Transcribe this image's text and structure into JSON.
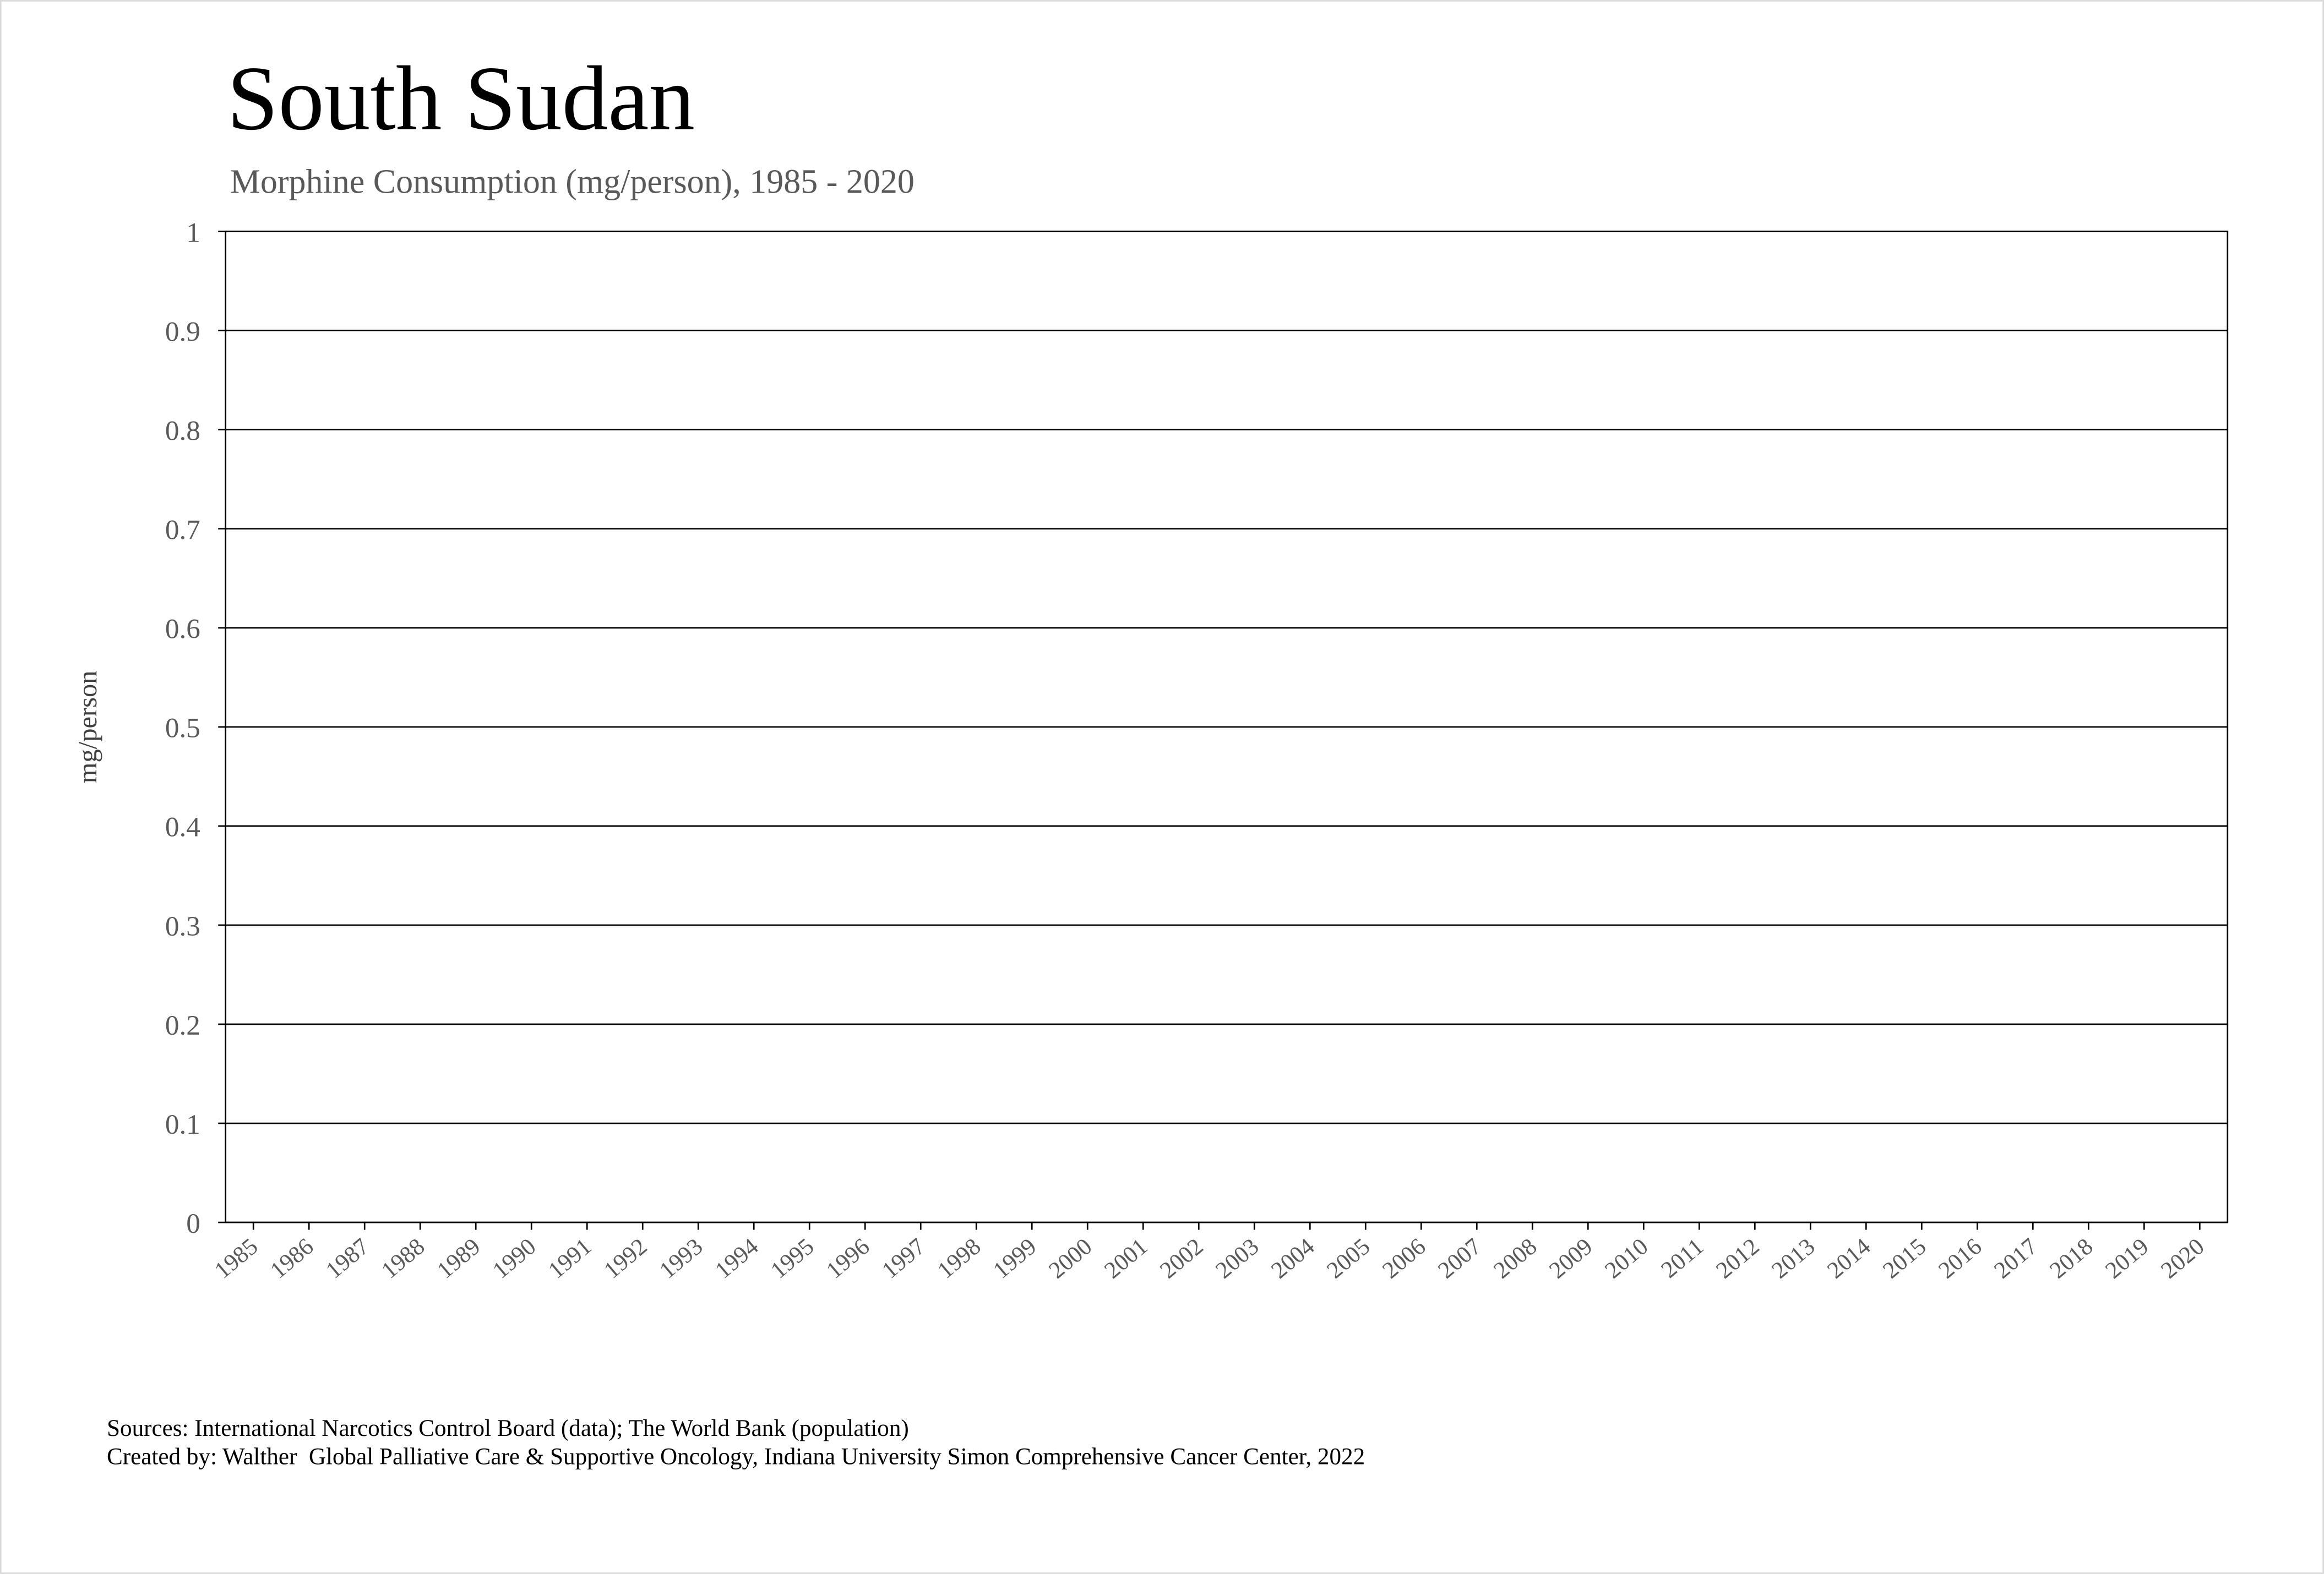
{
  "chart_data": {
    "type": "line",
    "title": "South Sudan",
    "subtitle": "Morphine Consumption (mg/person), 1985 - 2020",
    "y_label": "mg/person",
    "categories": [
      "1985",
      "1986",
      "1987",
      "1988",
      "1989",
      "1990",
      "1991",
      "1992",
      "1993",
      "1994",
      "1995",
      "1996",
      "1997",
      "1998",
      "1999",
      "2000",
      "2001",
      "2002",
      "2003",
      "2004",
      "2005",
      "2006",
      "2007",
      "2008",
      "2009",
      "2010",
      "2011",
      "2012",
      "2013",
      "2014",
      "2015",
      "2016",
      "2017",
      "2018",
      "2019",
      "2020"
    ],
    "values": [
      null,
      null,
      null,
      null,
      null,
      null,
      null,
      null,
      null,
      null,
      null,
      null,
      null,
      null,
      null,
      null,
      null,
      null,
      null,
      null,
      null,
      null,
      null,
      null,
      null,
      null,
      null,
      null,
      null,
      null,
      null,
      null,
      null,
      null,
      null,
      null
    ],
    "color": "#c00000",
    "ylim": [
      0,
      1
    ],
    "yticks": [
      0,
      0.1,
      0.2,
      0.3,
      0.4,
      0.5,
      0.6,
      0.7,
      0.8,
      0.9,
      1
    ],
    "grid": true,
    "sources": "Sources: International Narcotics Control Board (data); The World Bank (population)",
    "credit": "Created by: Walther  Global Palliative Care & Supportive Oncology, Indiana University Simon Comprehensive Cancer Center, 2022"
  }
}
